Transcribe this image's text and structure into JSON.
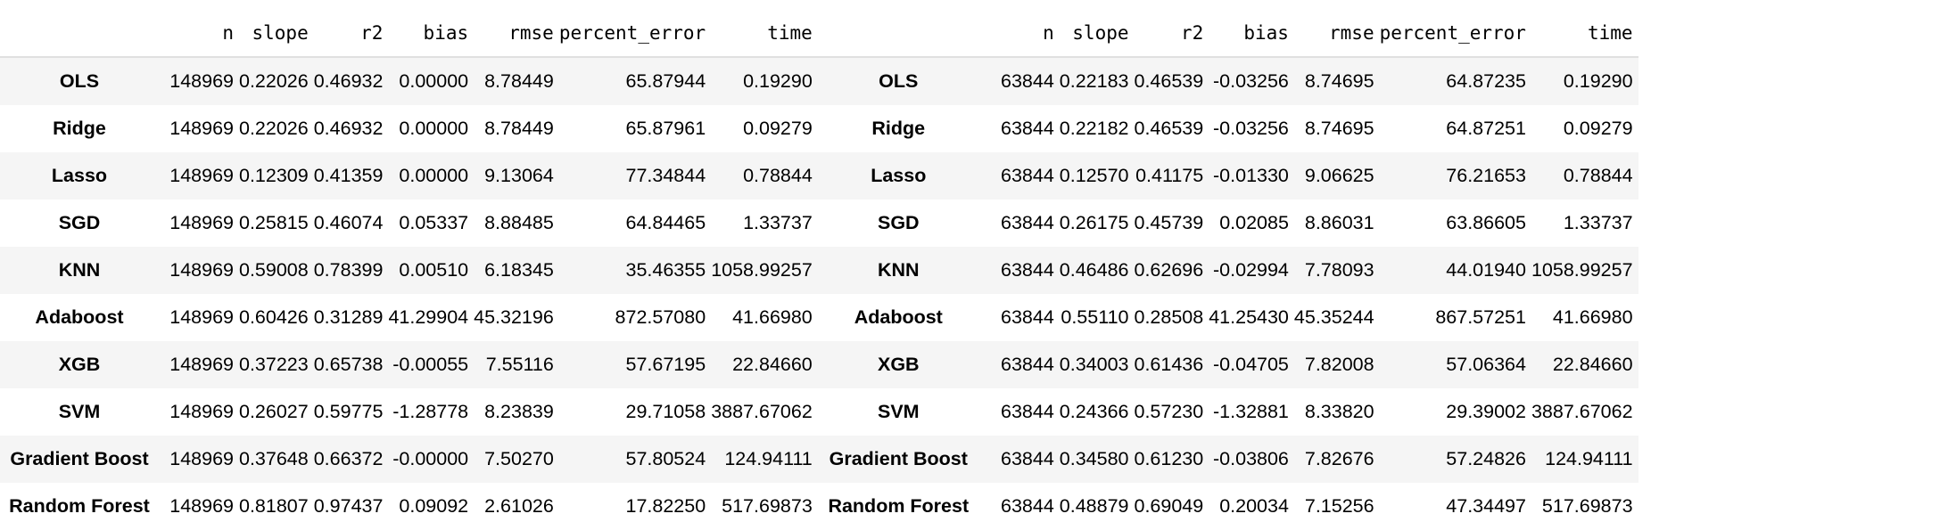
{
  "tables": [
    {
      "columns": [
        "",
        "n",
        "slope",
        "r2",
        "bias",
        "rmse",
        "percent_error",
        "time"
      ],
      "rows": [
        {
          "label": "OLS",
          "values": [
            "148969",
            "0.22026",
            "0.46932",
            "0.00000",
            "8.78449",
            "65.87944",
            "0.19290"
          ]
        },
        {
          "label": "Ridge",
          "values": [
            "148969",
            "0.22026",
            "0.46932",
            "0.00000",
            "8.78449",
            "65.87961",
            "0.09279"
          ]
        },
        {
          "label": "Lasso",
          "values": [
            "148969",
            "0.12309",
            "0.41359",
            "0.00000",
            "9.13064",
            "77.34844",
            "0.78844"
          ]
        },
        {
          "label": "SGD",
          "values": [
            "148969",
            "0.25815",
            "0.46074",
            "0.05337",
            "8.88485",
            "64.84465",
            "1.33737"
          ]
        },
        {
          "label": "KNN",
          "values": [
            "148969",
            "0.59008",
            "0.78399",
            "0.00510",
            "6.18345",
            "35.46355",
            "1058.99257"
          ]
        },
        {
          "label": "Adaboost",
          "values": [
            "148969",
            "0.60426",
            "0.31289",
            "41.29904",
            "45.32196",
            "872.57080",
            "41.66980"
          ]
        },
        {
          "label": "XGB",
          "values": [
            "148969",
            "0.37223",
            "0.65738",
            "-0.00055",
            "7.55116",
            "57.67195",
            "22.84660"
          ]
        },
        {
          "label": "SVM",
          "values": [
            "148969",
            "0.26027",
            "0.59775",
            "-1.28778",
            "8.23839",
            "29.71058",
            "3887.67062"
          ]
        },
        {
          "label": "Gradient Boost",
          "values": [
            "148969",
            "0.37648",
            "0.66372",
            "-0.00000",
            "7.50270",
            "57.80524",
            "124.94111"
          ]
        },
        {
          "label": "Random Forest",
          "values": [
            "148969",
            "0.81807",
            "0.97437",
            "0.09092",
            "2.61026",
            "17.82250",
            "517.69873"
          ]
        }
      ]
    },
    {
      "columns": [
        "",
        "n",
        "slope",
        "r2",
        "bias",
        "rmse",
        "percent_error",
        "time"
      ],
      "rows": [
        {
          "label": "OLS",
          "values": [
            "63844",
            "0.22183",
            "0.46539",
            "-0.03256",
            "8.74695",
            "64.87235",
            "0.19290"
          ]
        },
        {
          "label": "Ridge",
          "values": [
            "63844",
            "0.22182",
            "0.46539",
            "-0.03256",
            "8.74695",
            "64.87251",
            "0.09279"
          ]
        },
        {
          "label": "Lasso",
          "values": [
            "63844",
            "0.12570",
            "0.41175",
            "-0.01330",
            "9.06625",
            "76.21653",
            "0.78844"
          ]
        },
        {
          "label": "SGD",
          "values": [
            "63844",
            "0.26175",
            "0.45739",
            "0.02085",
            "8.86031",
            "63.86605",
            "1.33737"
          ]
        },
        {
          "label": "KNN",
          "values": [
            "63844",
            "0.46486",
            "0.62696",
            "-0.02994",
            "7.78093",
            "44.01940",
            "1058.99257"
          ]
        },
        {
          "label": "Adaboost",
          "values": [
            "63844",
            "0.55110",
            "0.28508",
            "41.25430",
            "45.35244",
            "867.57251",
            "41.66980"
          ]
        },
        {
          "label": "XGB",
          "values": [
            "63844",
            "0.34003",
            "0.61436",
            "-0.04705",
            "7.82008",
            "57.06364",
            "22.84660"
          ]
        },
        {
          "label": "SVM",
          "values": [
            "63844",
            "0.24366",
            "0.57230",
            "-1.32881",
            "8.33820",
            "29.39002",
            "3887.67062"
          ]
        },
        {
          "label": "Gradient Boost",
          "values": [
            "63844",
            "0.34580",
            "0.61230",
            "-0.03806",
            "7.82676",
            "57.24826",
            "124.94111"
          ]
        },
        {
          "label": "Random Forest",
          "values": [
            "63844",
            "0.48879",
            "0.69049",
            "0.20034",
            "7.15256",
            "47.34497",
            "517.69873"
          ]
        }
      ]
    }
  ]
}
